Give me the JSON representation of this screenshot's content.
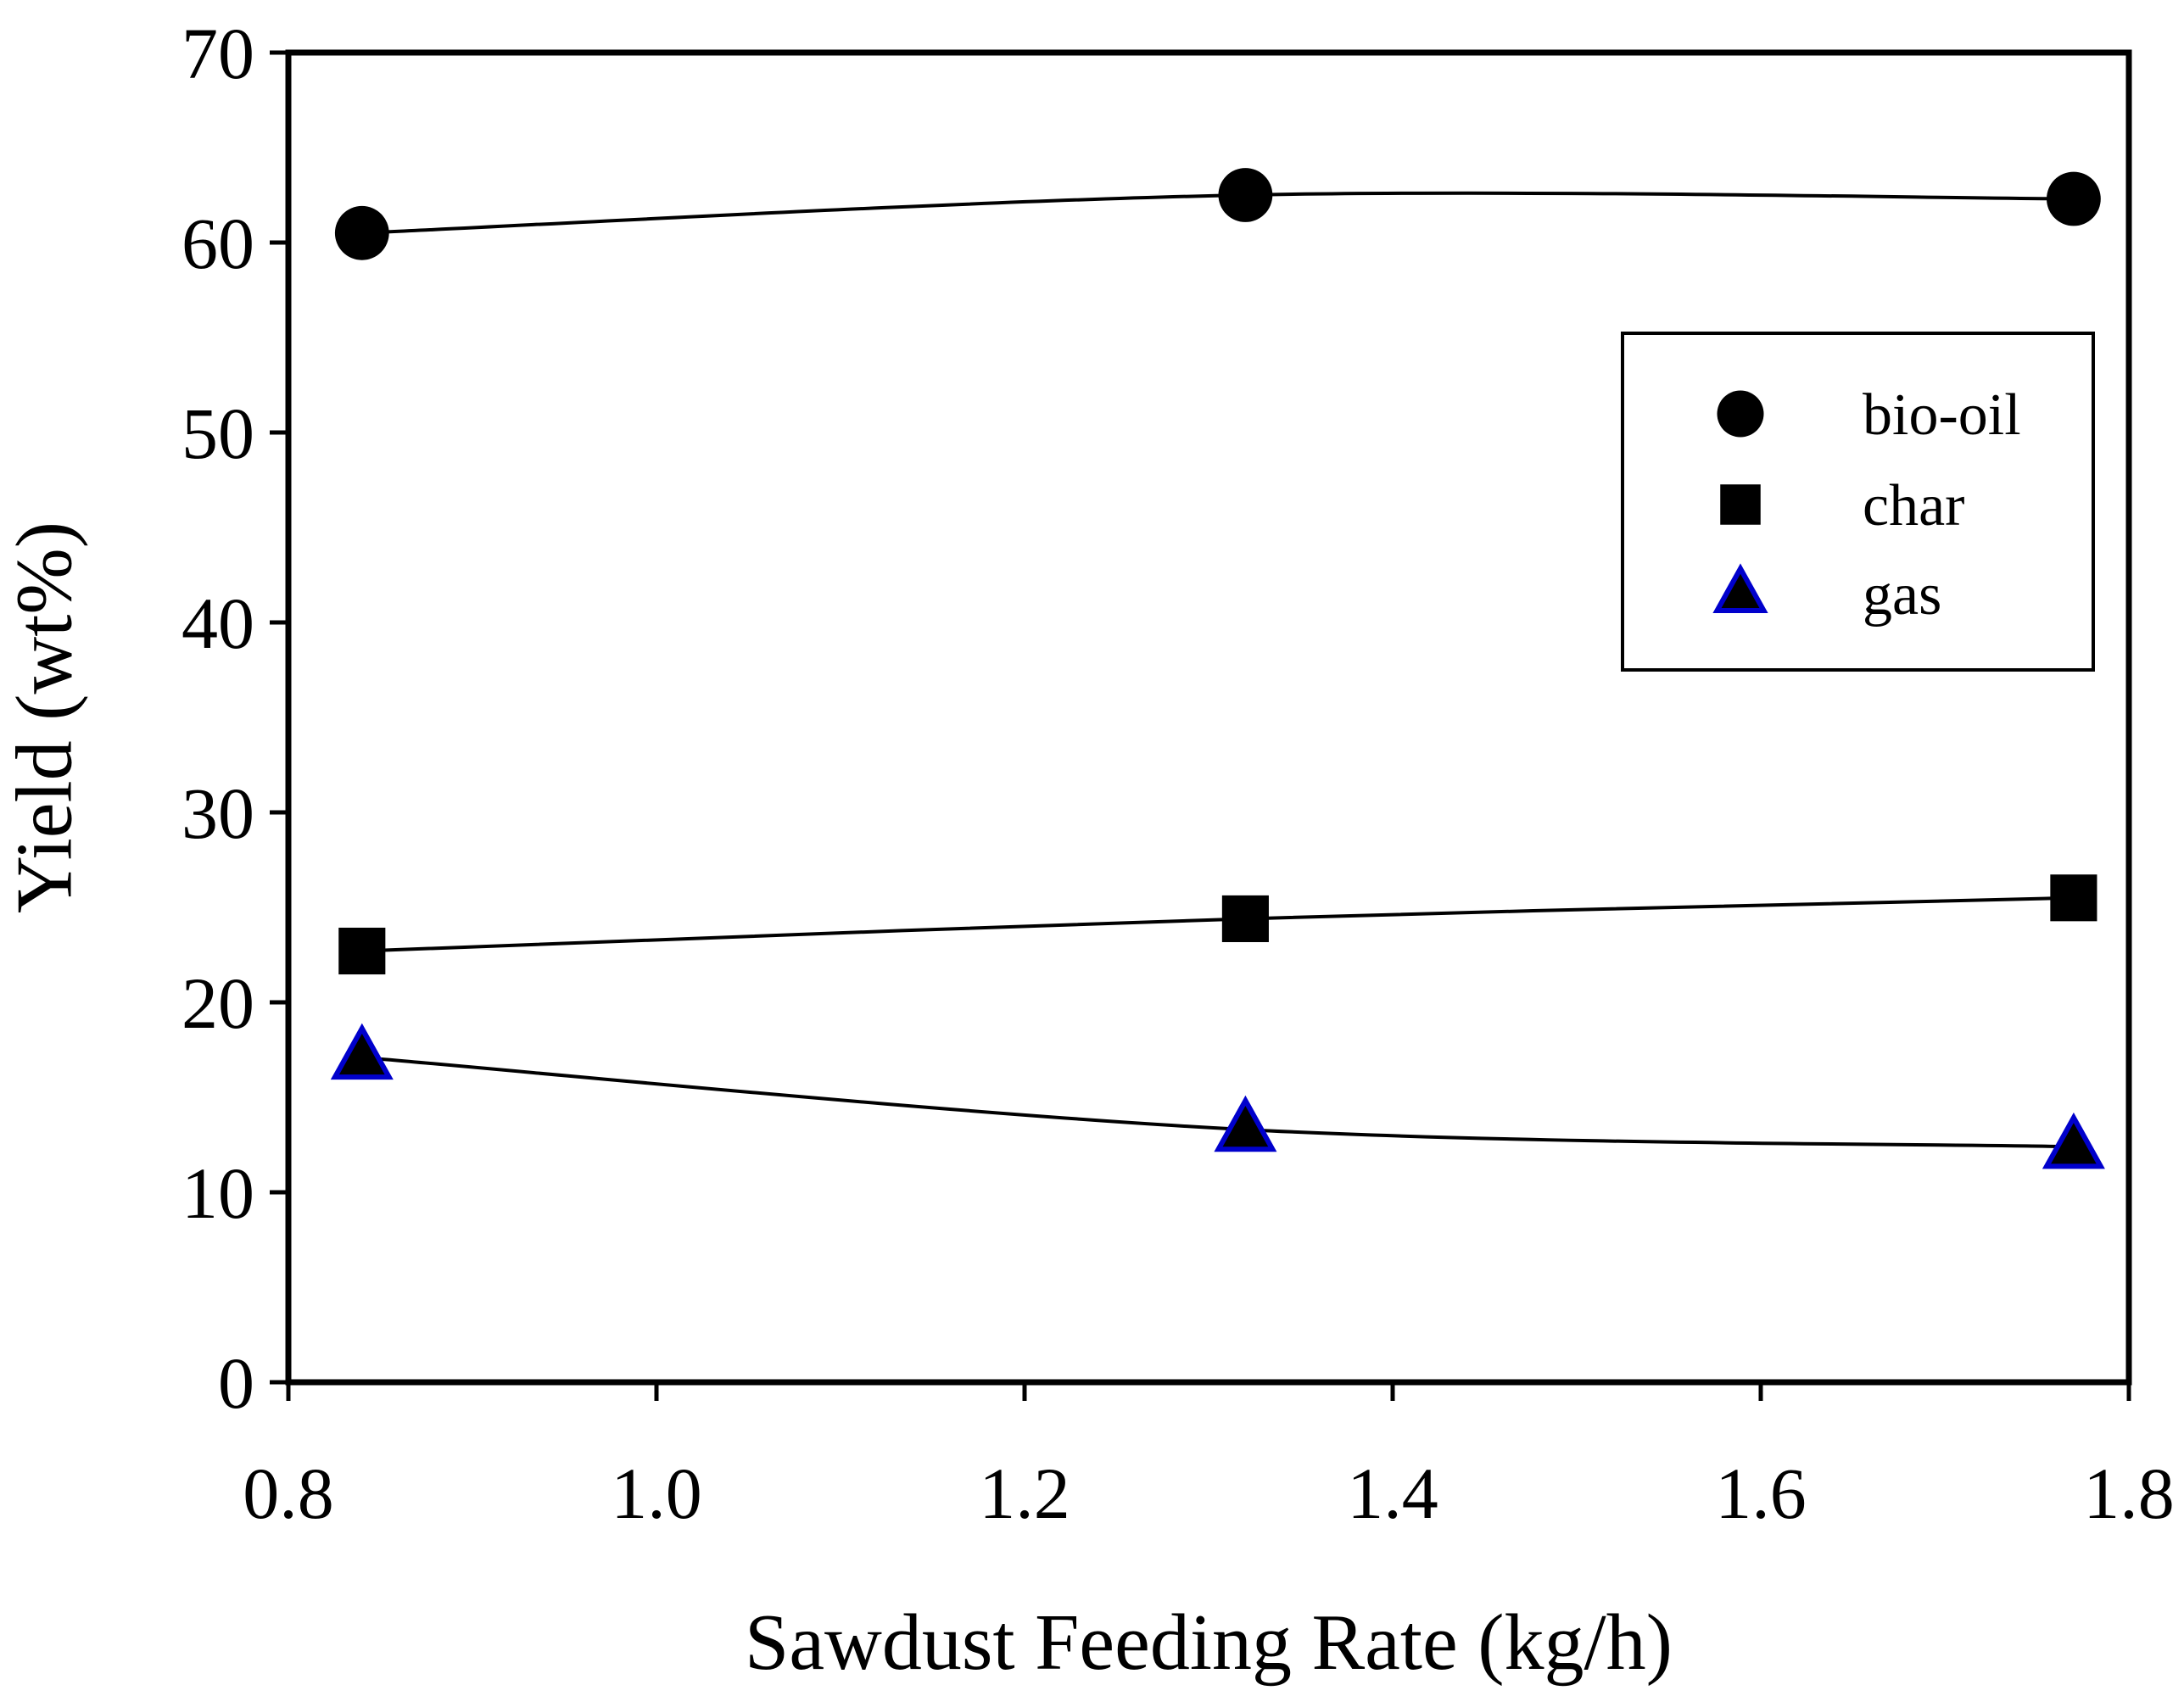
{
  "chart_data": {
    "type": "line",
    "title": "",
    "xlabel": "Sawdust Feeding Rate (kg/h)",
    "ylabel": "Yield (wt%)",
    "xlim": [
      0.8,
      1.8
    ],
    "ylim": [
      0,
      70
    ],
    "x_ticks": [
      "0.8",
      "1.0",
      "1.2",
      "1.4",
      "1.6",
      "1.8"
    ],
    "y_ticks": [
      "0",
      "10",
      "20",
      "30",
      "40",
      "50",
      "60",
      "70"
    ],
    "grid": false,
    "legend_position": "upper-right",
    "x": [
      0.84,
      1.32,
      1.77
    ],
    "series": [
      {
        "name": "bio-oil",
        "marker": "circle",
        "color": "#000000",
        "values": [
          60.5,
          62.5,
          62.3
        ]
      },
      {
        "name": "char",
        "marker": "square",
        "color": "#000000",
        "values": [
          22.7,
          24.4,
          25.5
        ]
      },
      {
        "name": "gas",
        "marker": "triangle",
        "color": "#000000",
        "edge_color": "#0000cc",
        "values": [
          17.1,
          13.3,
          12.4
        ]
      }
    ]
  }
}
